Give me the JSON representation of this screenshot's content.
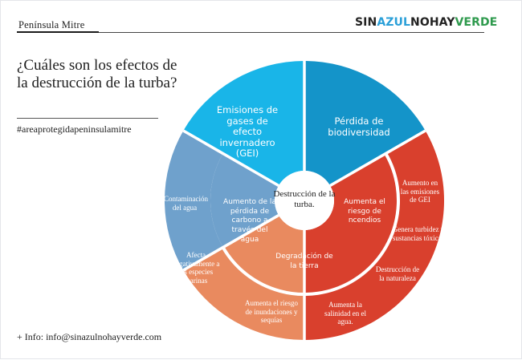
{
  "header": {
    "title": "Península Mitre",
    "brand": {
      "part1": "SIN",
      "part2": "AZUL",
      "part3": "NOHAY",
      "part4": "VERDE"
    }
  },
  "question": "¿Cuáles son los efectos de la destrucción de la turba?",
  "hashtag": "#areaprotegidapeninsulamitre",
  "footer": "+ Info: info@sinazulnohayverde.com",
  "diagram": {
    "center": "Destrucción de la turba.",
    "colors": {
      "blue_bright": "#19b5e8",
      "blue_dark": "#1494c9",
      "red": "#d9402d",
      "orange": "#e98a5f",
      "steel_blue": "#6fa1cc",
      "white": "#ffffff"
    },
    "top_left": "Emisiones de gases de efecto invernadero (GEI)",
    "top_right": "Pérdida de biodiversidad",
    "inner_right": "Aumenta el riesgo de ncendios",
    "inner_bottom": "Degradación de la tierra",
    "inner_left": "Aumento de la pérdida de carbono a través del agua",
    "outer_right_1": "Aumento en las emisiones de GEI",
    "outer_right_2": "Genera turbidez y sustancias tóxicas",
    "outer_right_3": "Destrucción de la naturaleza",
    "outer_bottom_1": "Aumenta el riesgo de inundaciones y sequías",
    "outer_bottom_2": "Aumenta la salinidad en el agua.",
    "outer_left_1": "Contaminación del agua",
    "outer_left_2": "Afecta negativamente a las especies marinas"
  }
}
